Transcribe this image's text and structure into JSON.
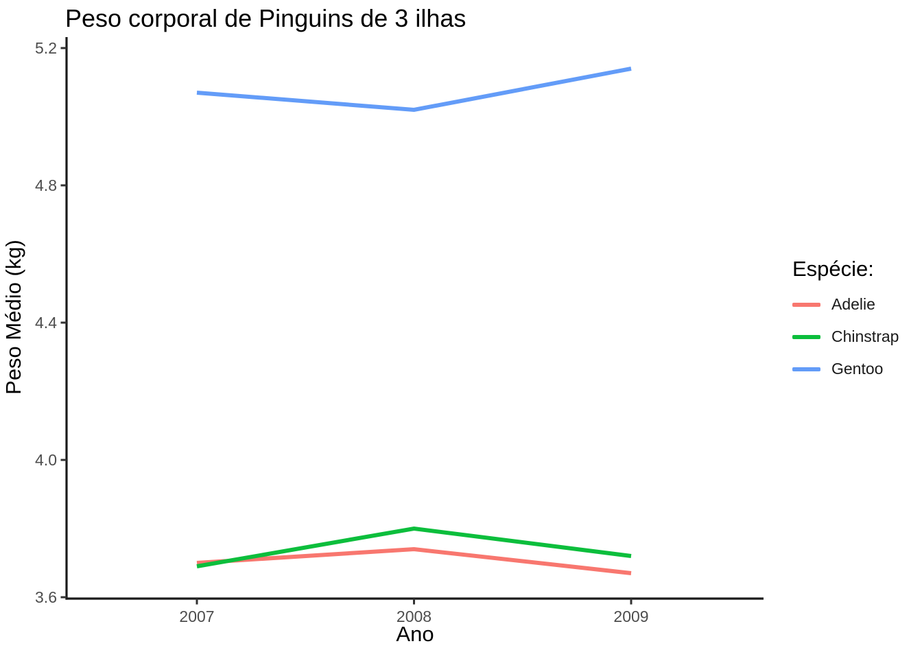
{
  "figure": {
    "background": "#FFFFFF"
  },
  "colors": {
    "axis_line": "#1A1A1A",
    "tick_label": "#4D4D4D",
    "title_text": "#000000"
  },
  "chart_data": {
    "type": "line",
    "title": "Peso corporal de Pinguins de 3 ilhas",
    "xlabel": "Ano",
    "ylabel": "Peso Médio (kg)",
    "legend_title": "Espécie:",
    "legend_position": "right",
    "grid": false,
    "x": [
      2007,
      2008,
      2009
    ],
    "xtick_labels": [
      "2007",
      "2008",
      "2009"
    ],
    "ylim": [
      3.6,
      5.2
    ],
    "yticks": [
      3.6,
      4.0,
      4.4,
      4.8,
      5.2
    ],
    "ytick_labels": [
      "3.6",
      "4.0",
      "4.4",
      "4.8",
      "5.2"
    ],
    "series": [
      {
        "name": "Adelie",
        "color": "#F8776F",
        "values": [
          3.7,
          3.74,
          3.67
        ]
      },
      {
        "name": "Chinstrap",
        "color": "#0CBE3C",
        "values": [
          3.69,
          3.8,
          3.72
        ]
      },
      {
        "name": "Gentoo",
        "color": "#639CF8",
        "values": [
          5.07,
          5.02,
          5.14
        ]
      }
    ]
  }
}
